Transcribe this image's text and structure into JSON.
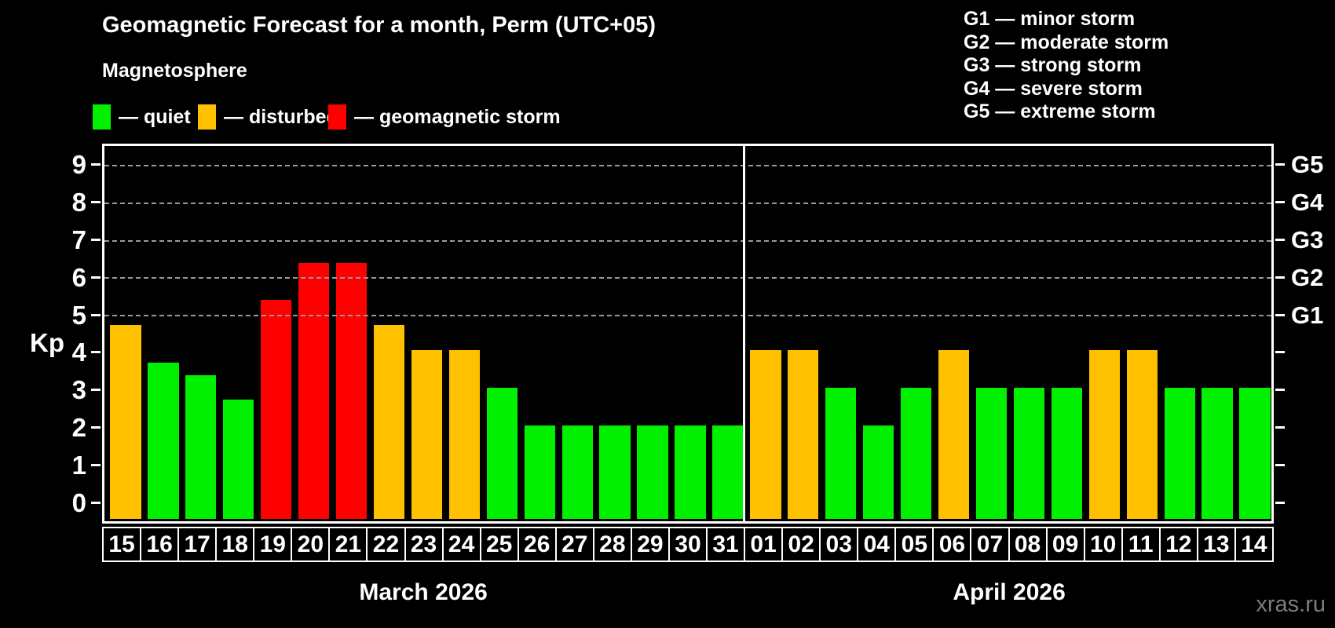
{
  "header": {
    "title": "Geomagnetic Forecast for a month, Perm (UTC+05)",
    "subtitle": "Magnetosphere"
  },
  "bar_legend": [
    {
      "key": "quiet",
      "label": "— quiet"
    },
    {
      "key": "disturbed",
      "label": "— disturbed"
    },
    {
      "key": "storm",
      "label": "— geomagnetic storm"
    }
  ],
  "g_scale_legend": [
    "G1 — minor storm",
    "G2 — moderate storm",
    "G3 — strong storm",
    "G4 — severe storm",
    "G5 — extreme storm"
  ],
  "watermark": "xras.ru",
  "chart_data": {
    "type": "bar",
    "ylabel": "Kp",
    "ylim": [
      -0.5,
      9.5
    ],
    "yticks": [
      0,
      1,
      2,
      3,
      4,
      5,
      6,
      7,
      8,
      9
    ],
    "gridlines": [
      5,
      6,
      7,
      8,
      9
    ],
    "grid": "dashed horizontal at Kp 5-9 only",
    "legend_position": "top",
    "right_axis_labels": [
      {
        "kp": 5,
        "label": "G1"
      },
      {
        "kp": 6,
        "label": "G2"
      },
      {
        "kp": 7,
        "label": "G3"
      },
      {
        "kp": 8,
        "label": "G4"
      },
      {
        "kp": 9,
        "label": "G5"
      }
    ],
    "status_colors": {
      "quiet": "#00f000",
      "disturbed": "#ffc000",
      "storm": "#ff0000"
    },
    "months": [
      {
        "label": "March 2026",
        "days": [
          {
            "day": "15",
            "kp": 4.67,
            "status": "disturbed"
          },
          {
            "day": "16",
            "kp": 3.67,
            "status": "quiet"
          },
          {
            "day": "17",
            "kp": 3.33,
            "status": "quiet"
          },
          {
            "day": "18",
            "kp": 2.67,
            "status": "quiet"
          },
          {
            "day": "19",
            "kp": 5.33,
            "status": "storm"
          },
          {
            "day": "20",
            "kp": 6.33,
            "status": "storm"
          },
          {
            "day": "21",
            "kp": 6.33,
            "status": "storm"
          },
          {
            "day": "22",
            "kp": 4.67,
            "status": "disturbed"
          },
          {
            "day": "23",
            "kp": 4.0,
            "status": "disturbed"
          },
          {
            "day": "24",
            "kp": 4.0,
            "status": "disturbed"
          },
          {
            "day": "25",
            "kp": 3.0,
            "status": "quiet"
          },
          {
            "day": "26",
            "kp": 2.0,
            "status": "quiet"
          },
          {
            "day": "27",
            "kp": 2.0,
            "status": "quiet"
          },
          {
            "day": "28",
            "kp": 2.0,
            "status": "quiet"
          },
          {
            "day": "29",
            "kp": 2.0,
            "status": "quiet"
          },
          {
            "day": "30",
            "kp": 2.0,
            "status": "quiet"
          },
          {
            "day": "31",
            "kp": 2.0,
            "status": "quiet"
          }
        ]
      },
      {
        "label": "April 2026",
        "days": [
          {
            "day": "01",
            "kp": 4.0,
            "status": "disturbed"
          },
          {
            "day": "02",
            "kp": 4.0,
            "status": "disturbed"
          },
          {
            "day": "03",
            "kp": 3.0,
            "status": "quiet"
          },
          {
            "day": "04",
            "kp": 2.0,
            "status": "quiet"
          },
          {
            "day": "05",
            "kp": 3.0,
            "status": "quiet"
          },
          {
            "day": "06",
            "kp": 4.0,
            "status": "disturbed"
          },
          {
            "day": "07",
            "kp": 3.0,
            "status": "quiet"
          },
          {
            "day": "08",
            "kp": 3.0,
            "status": "quiet"
          },
          {
            "day": "09",
            "kp": 3.0,
            "status": "quiet"
          },
          {
            "day": "10",
            "kp": 4.0,
            "status": "disturbed"
          },
          {
            "day": "11",
            "kp": 4.0,
            "status": "disturbed"
          },
          {
            "day": "12",
            "kp": 3.0,
            "status": "quiet"
          },
          {
            "day": "13",
            "kp": 3.0,
            "status": "quiet"
          },
          {
            "day": "14",
            "kp": 3.0,
            "status": "quiet"
          }
        ]
      }
    ]
  }
}
